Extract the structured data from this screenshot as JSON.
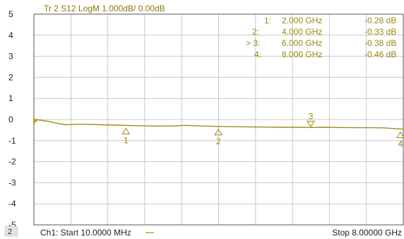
{
  "trace_header": "Tr 2  S12 LogM 1.000dB/  0.00dB",
  "channel_number": "2",
  "footer": {
    "start": "Ch1:  Start  10.0000 MHz",
    "stop": "Stop  8.00000 GHz"
  },
  "colors": {
    "trace": "#a08c1a",
    "grid": "#c8c8c8",
    "plot_border": "#555555",
    "marker_text": "#9a8a10",
    "reference_arrow": "#c8a020",
    "footer_line": "#c8a020"
  },
  "marker_table": [
    {
      "id": "1",
      "label": "1:",
      "freq": "2.000  GHz",
      "value": "-0.28 dB"
    },
    {
      "id": "2",
      "label": "2:",
      "freq": "4.000  GHz",
      "value": "-0.33 dB"
    },
    {
      "id": "3",
      "label": "> 3:",
      "freq": "6.000  GHz",
      "value": "-0.38 dB"
    },
    {
      "id": "4",
      "label": "4:",
      "freq": "8.000  GHz",
      "value": "-0.46 dB"
    }
  ],
  "chart_data": {
    "type": "line",
    "title": "Tr 2  S12 LogM 1.000dB/  0.00dB",
    "xlim": [
      0.01,
      8.0
    ],
    "ylim": [
      -5,
      5
    ],
    "yticks": [
      5,
      4,
      3,
      2,
      1,
      0,
      -1,
      -2,
      -3,
      -4,
      -5
    ],
    "x_divisions": 10,
    "grid": true,
    "reference_level": 0,
    "series": [
      {
        "x": [
          0.01,
          0.1,
          0.3,
          0.5,
          0.7,
          0.8,
          1.0,
          1.2,
          1.5,
          1.8,
          2.0,
          2.3,
          2.6,
          3.0,
          3.3,
          3.6,
          4.0,
          4.3,
          4.6,
          5.0,
          5.3,
          5.6,
          6.0,
          6.3,
          6.6,
          7.0,
          7.3,
          7.6,
          7.8,
          8.0
        ],
        "y": [
          0.0,
          -0.02,
          -0.08,
          -0.17,
          -0.25,
          -0.24,
          -0.22,
          -0.23,
          -0.25,
          -0.27,
          -0.28,
          -0.3,
          -0.31,
          -0.31,
          -0.28,
          -0.31,
          -0.33,
          -0.34,
          -0.35,
          -0.36,
          -0.37,
          -0.37,
          -0.38,
          -0.37,
          -0.38,
          -0.39,
          -0.39,
          -0.4,
          -0.43,
          -0.46
        ]
      }
    ],
    "markers": [
      {
        "id": "1",
        "x": 2.0,
        "y": -0.28,
        "active": false
      },
      {
        "id": "2",
        "x": 4.0,
        "y": -0.33,
        "active": false
      },
      {
        "id": "3",
        "x": 6.0,
        "y": -0.38,
        "active": true
      },
      {
        "id": "4",
        "x": 8.0,
        "y": -0.46,
        "active": false
      }
    ]
  }
}
